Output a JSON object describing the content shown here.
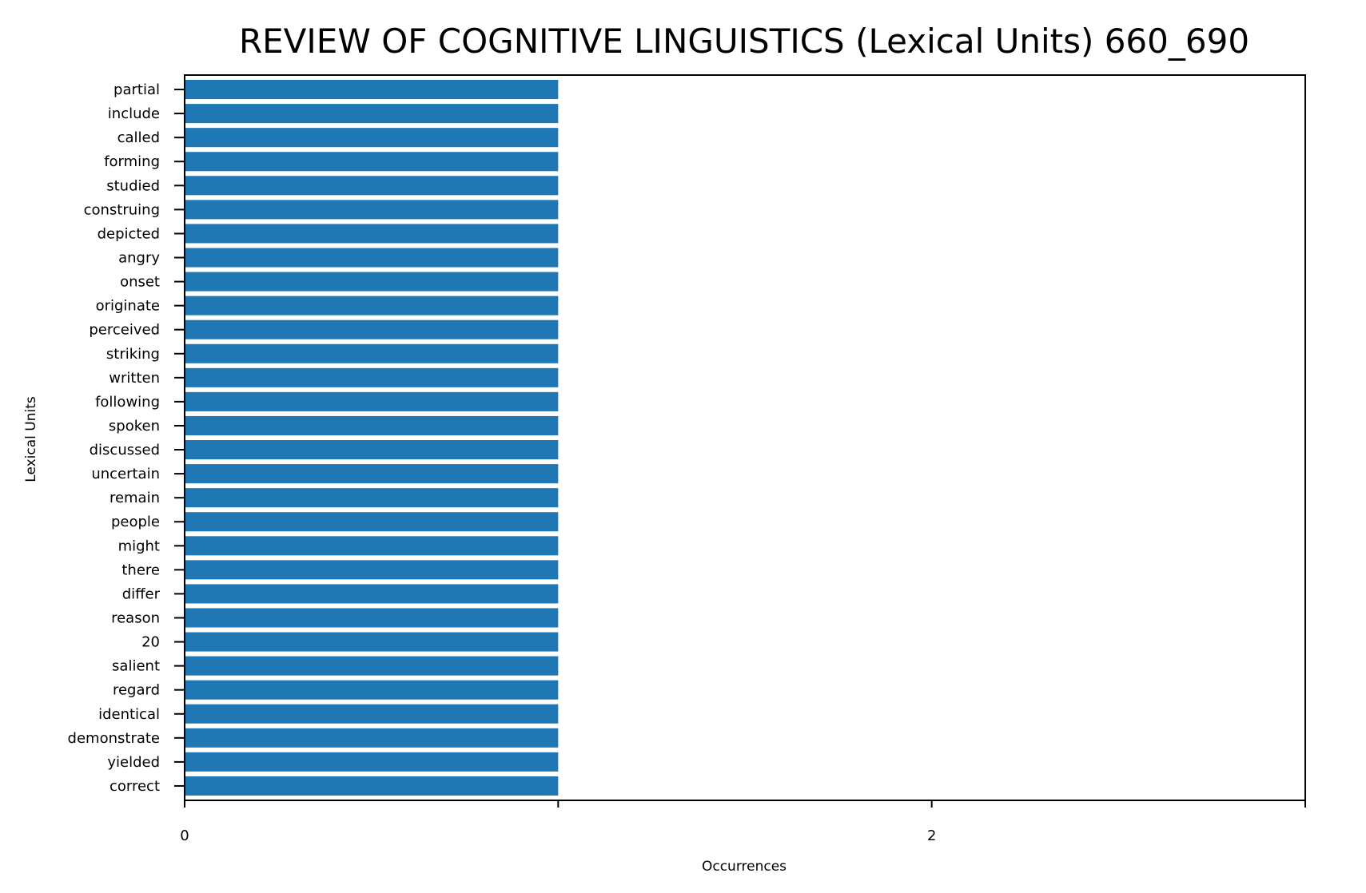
{
  "chart_data": {
    "type": "bar",
    "orientation": "horizontal",
    "title": "REVIEW OF COGNITIVE LINGUISTICS (Lexical Units) 660_690",
    "xlabel": "Occurrences",
    "ylabel": "Lexical Units",
    "xlim": [
      0,
      3
    ],
    "x_ticks": [
      0,
      1,
      2,
      3
    ],
    "x_tick_labels": [
      "0",
      "",
      "2",
      ""
    ],
    "grid": false,
    "legend": "none",
    "colors": {
      "bar": "#1f77b4",
      "axis": "#000000",
      "background": "#ffffff"
    },
    "categories": [
      "partial",
      "include",
      "called",
      "forming",
      "studied",
      "construing",
      "depicted",
      "angry",
      "onset",
      "originate",
      "perceived",
      "striking",
      "written",
      "following",
      "spoken",
      "discussed",
      "uncertain",
      "remain",
      "people",
      "might",
      "there",
      "differ",
      "reason",
      "20",
      "salient",
      "regard",
      "identical",
      "demonstrate",
      "yielded",
      "correct"
    ],
    "values": [
      1,
      1,
      1,
      1,
      1,
      1,
      1,
      1,
      1,
      1,
      1,
      1,
      1,
      1,
      1,
      1,
      1,
      1,
      1,
      1,
      1,
      1,
      1,
      1,
      1,
      1,
      1,
      1,
      1,
      1
    ]
  }
}
